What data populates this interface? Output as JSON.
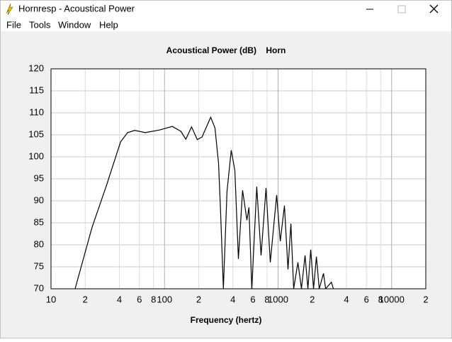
{
  "window": {
    "title": "Hornresp - Acoustical Power",
    "menu": [
      "File",
      "Tools",
      "Window",
      "Help"
    ]
  },
  "chart_data": {
    "type": "line",
    "title": "Acoustical Power (dB)    Horn",
    "xlabel": "Frequency (hertz)",
    "log_x": true,
    "grid": true,
    "color": "#000000",
    "xlim": [
      10,
      20000
    ],
    "xticks": [
      10,
      {
        "value": 20,
        "label": "2"
      },
      {
        "value": 40,
        "label": "4"
      },
      {
        "value": 60,
        "label": "6"
      },
      {
        "value": 80,
        "label": "8"
      },
      100,
      {
        "value": 200,
        "label": "2"
      },
      {
        "value": 400,
        "label": "4"
      },
      {
        "value": 600,
        "label": "6"
      },
      {
        "value": 800,
        "label": "8"
      },
      1000,
      {
        "value": 2000,
        "label": "2"
      },
      {
        "value": 4000,
        "label": "4"
      },
      {
        "value": 6000,
        "label": "6"
      },
      {
        "value": 8000,
        "label": "8"
      },
      10000,
      {
        "value": 20000,
        "label": "2"
      }
    ],
    "ylim": [
      70,
      120
    ],
    "yticks": [
      70,
      75,
      80,
      85,
      90,
      95,
      100,
      105,
      110,
      115,
      120
    ],
    "x": [
      16.3,
      23,
      30.7,
      41,
      47.3,
      54.6,
      67.8,
      90.3,
      117,
      139,
      154,
      173,
      194,
      214,
      255,
      278,
      299,
      312,
      330,
      355,
      387,
      416,
      447,
      487,
      531,
      554,
      587,
      649,
      708,
      783,
      854,
      972,
      1045,
      1138,
      1223,
      1296,
      1372,
      1496,
      1607,
      1729,
      1830,
      1939,
      2053,
      2175,
      2304,
      2512,
      2624,
      2944,
      3073
    ],
    "values": [
      70,
      84,
      93.4,
      103.4,
      105.5,
      106,
      105.5,
      106.1,
      106.9,
      105.8,
      104,
      106.8,
      103.9,
      104.5,
      109,
      106.6,
      98.5,
      87.3,
      70,
      92.1,
      101.5,
      96.9,
      76.8,
      92.4,
      85.6,
      88.5,
      70,
      93.2,
      77.6,
      92.9,
      76,
      91.3,
      80.8,
      88.9,
      74.4,
      84.8,
      70,
      76,
      70,
      77.6,
      70,
      78.9,
      70,
      77.3,
      70,
      73.5,
      70,
      71.5,
      70
    ]
  }
}
